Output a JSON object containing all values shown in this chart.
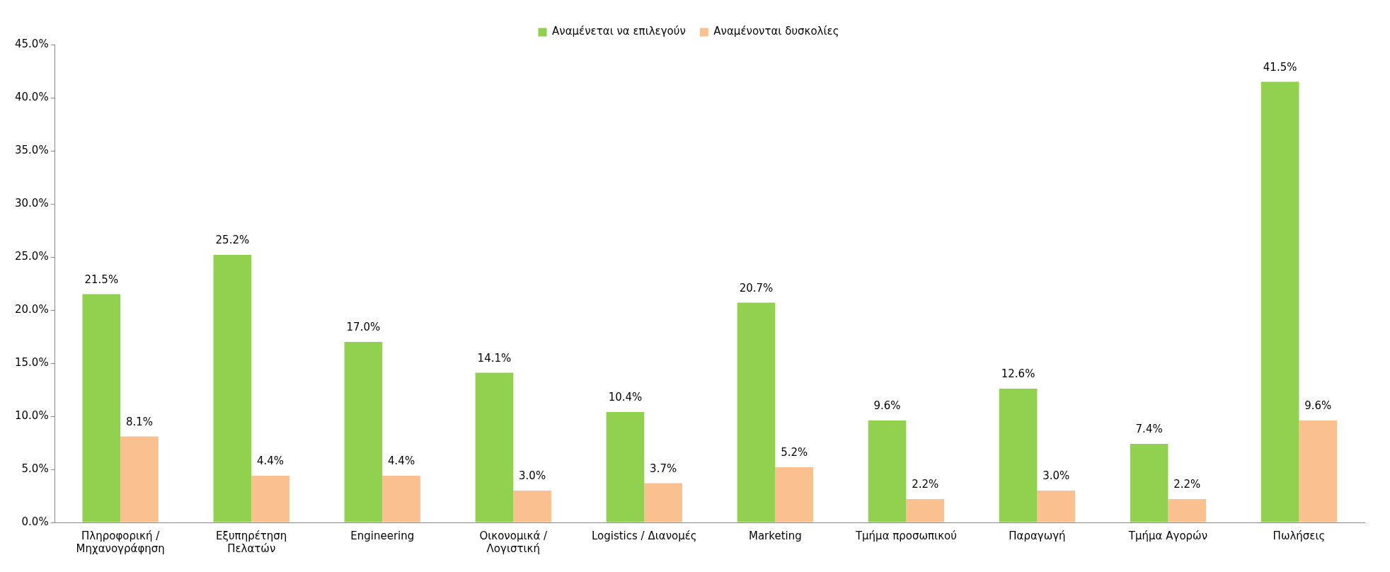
{
  "chart_data": {
    "type": "bar",
    "categories": [
      "Πληροφορική /\nΜηχανογράφηση",
      "Εξυπηρέτηση\nΠελατών",
      "Engineering",
      "Οικονομικά /\nΛογιστική",
      "Logistics / Διανομές",
      "Marketing",
      "Τμήμα προσωπικού",
      "Παραγωγή",
      "Τμήμα Αγορών",
      "Πωλήσεις"
    ],
    "series": [
      {
        "name": "Αναμένεται να επιλεγούν",
        "color": "#92d050",
        "values": [
          21.5,
          25.2,
          17.0,
          14.1,
          10.4,
          20.7,
          9.6,
          12.6,
          7.4,
          41.5
        ],
        "value_labels": [
          "21.5%",
          "25.2%",
          "17.0%",
          "14.1%",
          "10.4%",
          "20.7%",
          "9.6%",
          "12.6%",
          "7.4%",
          "41.5%"
        ]
      },
      {
        "name": "Αναμένονται δυσκολίες",
        "color": "#fac090",
        "values": [
          8.1,
          4.4,
          4.4,
          3.0,
          3.7,
          5.2,
          2.2,
          3.0,
          2.2,
          9.6
        ],
        "value_labels": [
          "8.1%",
          "4.4%",
          "4.4%",
          "3.0%",
          "3.7%",
          "5.2%",
          "2.2%",
          "3.0%",
          "2.2%",
          "9.6%"
        ]
      }
    ],
    "ylim": [
      0,
      45
    ],
    "yticks": [
      {
        "value": 0,
        "label": "0.0%"
      },
      {
        "value": 5,
        "label": "5.0%"
      },
      {
        "value": 10,
        "label": "10.0%"
      },
      {
        "value": 15,
        "label": "15.0%"
      },
      {
        "value": 20,
        "label": "20.0%"
      },
      {
        "value": 25,
        "label": "25.0%"
      },
      {
        "value": 30,
        "label": "30.0%"
      },
      {
        "value": 35,
        "label": "35.0%"
      },
      {
        "value": 40,
        "label": "40.0%"
      },
      {
        "value": 45,
        "label": "45.0%"
      }
    ],
    "grid": false,
    "legend": "top"
  }
}
